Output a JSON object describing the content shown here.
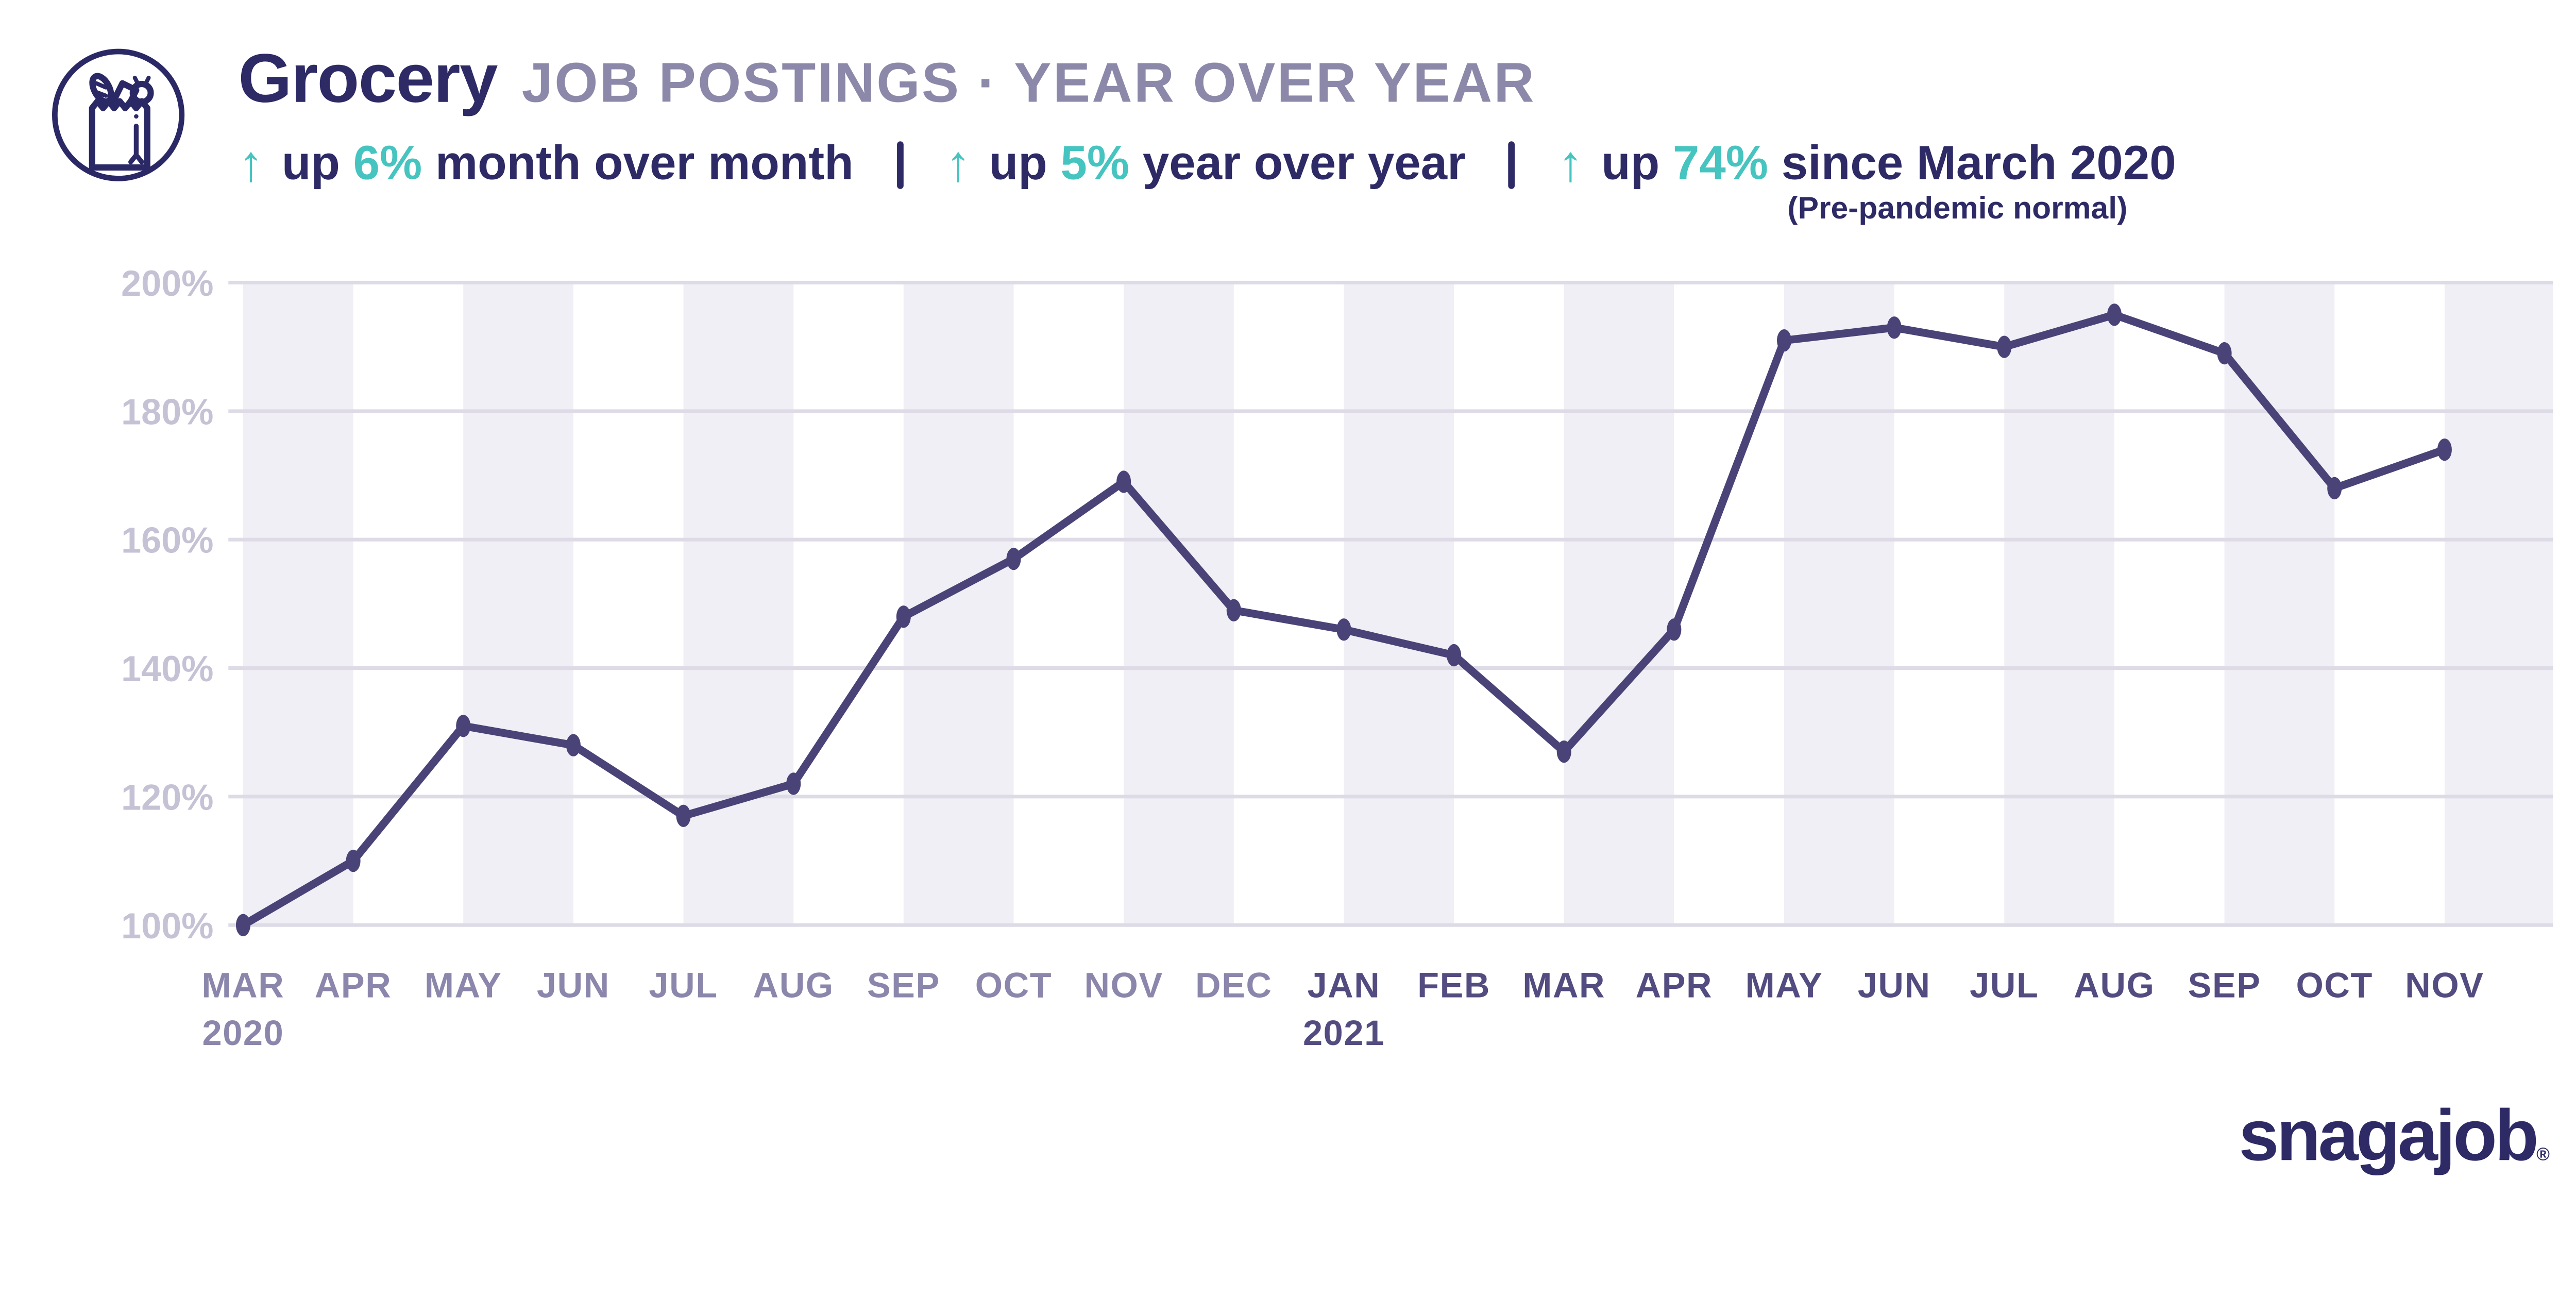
{
  "header": {
    "icon": "grocery-bag-icon",
    "title": "Grocery",
    "subtitle": "JOB POSTINGS · YEAR OVER YEAR",
    "arrow_glyph": "↑",
    "stats": [
      {
        "prefix": "up",
        "value": "6%",
        "suffix": "month over month"
      },
      {
        "prefix": "up",
        "value": "5%",
        "suffix": "year over year"
      },
      {
        "prefix": "up",
        "value": "74%",
        "suffix": "since March 2020"
      }
    ],
    "stat_note": "(Pre-pandemic normal)"
  },
  "footer": {
    "brand": "snagajob",
    "registered_mark": "®"
  },
  "colors": {
    "navy": "#2d2a66",
    "subtitle_gray": "#8c88a9",
    "teal": "#45c4c0",
    "line_purple": "#4a4377",
    "stripe": "#f0eff5",
    "gridline": "#dedbe7",
    "ytick_gray": "#c6c2d5",
    "xtick_2020": "#8b86ab",
    "xtick_2021": "#524c80"
  },
  "chart_data": {
    "type": "line",
    "title": "Grocery JOB POSTINGS · YEAR OVER YEAR",
    "categories": [
      "MAR",
      "APR",
      "MAY",
      "JUN",
      "JUL",
      "AUG",
      "SEP",
      "OCT",
      "NOV",
      "DEC",
      "JAN",
      "FEB",
      "MAR",
      "APR",
      "MAY",
      "JUN",
      "JUL",
      "AUG",
      "SEP",
      "OCT",
      "NOV"
    ],
    "year_markers": [
      {
        "index": 0,
        "label": "2020"
      },
      {
        "index": 10,
        "label": "2021"
      }
    ],
    "values": [
      100,
      110,
      131,
      128,
      117,
      122,
      148,
      157,
      169,
      149,
      146,
      142,
      127,
      146,
      191,
      193,
      190,
      195,
      189,
      168,
      174
    ],
    "unit": "%",
    "yticks": [
      100,
      120,
      140,
      160,
      180,
      200
    ],
    "ytick_labels": [
      "100%",
      "120%",
      "140%",
      "160%",
      "180%",
      "200%"
    ],
    "ylim": [
      100,
      200
    ],
    "grid": "horizontal",
    "background_bands": "alternating month pairs starting at MAR 2020",
    "legend": "none"
  }
}
